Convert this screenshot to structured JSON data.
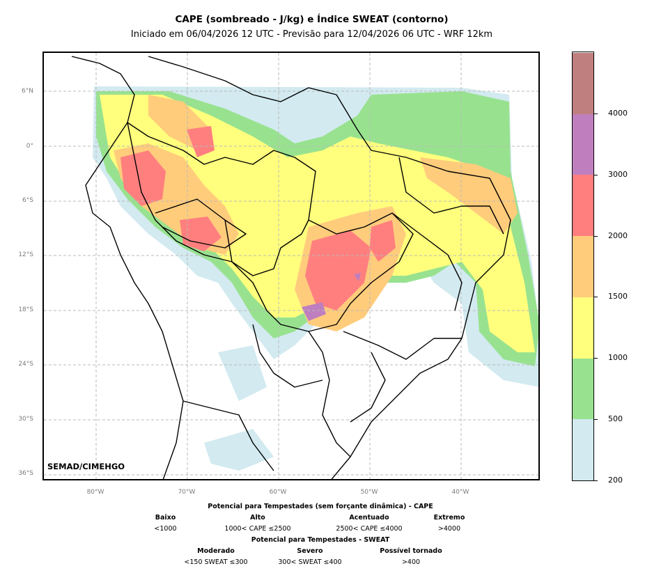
{
  "title": "CAPE (sombreado - J/kg) e Índice SWEAT (contorno)",
  "subtitle": "Iniciado em 06/04/2026 12 UTC - Previsão para 12/04/2026 06 UTC - WRF 12km",
  "watermark": "SEMAD/CIMEHGO",
  "lat_ticks": [
    "6°N",
    "0°",
    "6°S",
    "12°S",
    "18°S",
    "24°S",
    "30°S",
    "36°S"
  ],
  "lon_ticks": [
    "80°W",
    "70°W",
    "60°W",
    "50°W",
    "40°W"
  ],
  "colorbar": {
    "ticks": [
      "200",
      "500",
      "1000",
      "1500",
      "2000",
      "3000",
      "4000"
    ],
    "levels": [
      200,
      500,
      1000,
      1500,
      2000,
      3000,
      4000,
      5000
    ],
    "colors": [
      "#d2eaf0",
      "#98e28f",
      "#ffff7d",
      "#ffcc7c",
      "#ff7f7f",
      "#bf7fbf",
      "#bf7f7f"
    ]
  },
  "legend": {
    "cape_header": "Potencial para Tempestades (sem forçante dinâmica) - CAPE",
    "cape_items": [
      {
        "name": "Baixo",
        "range": "<1000"
      },
      {
        "name": "Alto",
        "range": "1000< CAPE ≤2500"
      },
      {
        "name": "Acentuado",
        "range": "2500< CAPE ≤4000"
      },
      {
        "name": "Extremo",
        "range": ">4000"
      }
    ],
    "sweat_header": "Potencial para Tempestades - SWEAT",
    "sweat_items": [
      {
        "name": "Moderado",
        "range": "<150 SWEAT ≤300"
      },
      {
        "name": "Severo",
        "range": "300< SWEAT ≤400"
      },
      {
        "name": "Possível tornado",
        "range": ">400"
      }
    ]
  }
}
